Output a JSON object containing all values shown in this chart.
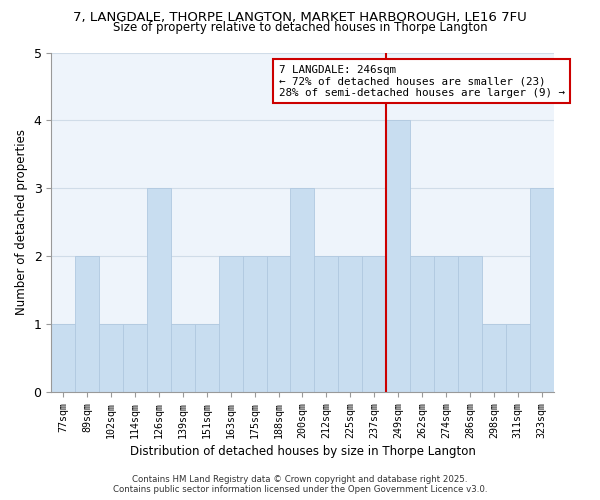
{
  "title_line1": "7, LANGDALE, THORPE LANGTON, MARKET HARBOROUGH, LE16 7FU",
  "title_line2": "Size of property relative to detached houses in Thorpe Langton",
  "xlabel": "Distribution of detached houses by size in Thorpe Langton",
  "ylabel": "Number of detached properties",
  "bar_labels": [
    "77sqm",
    "89sqm",
    "102sqm",
    "114sqm",
    "126sqm",
    "139sqm",
    "151sqm",
    "163sqm",
    "175sqm",
    "188sqm",
    "200sqm",
    "212sqm",
    "225sqm",
    "237sqm",
    "249sqm",
    "262sqm",
    "274sqm",
    "286sqm",
    "298sqm",
    "311sqm",
    "323sqm"
  ],
  "bar_values": [
    1,
    2,
    1,
    1,
    3,
    1,
    1,
    2,
    2,
    2,
    3,
    2,
    2,
    2,
    4,
    2,
    2,
    2,
    1,
    1,
    3
  ],
  "bar_color": "#c8ddf0",
  "bar_edge_color": "#b0c8e0",
  "ylim": [
    0,
    5
  ],
  "yticks": [
    0,
    1,
    2,
    3,
    4,
    5
  ],
  "vline_index": 14,
  "annotation_line1": "7 LANGDALE: 246sqm",
  "annotation_line2": "← 72% of detached houses are smaller (23)",
  "annotation_line3": "28% of semi-detached houses are larger (9) →",
  "vline_color": "#cc0000",
  "annotation_box_edge": "#cc0000",
  "footer_line1": "Contains HM Land Registry data © Crown copyright and database right 2025.",
  "footer_line2": "Contains public sector information licensed under the Open Government Licence v3.0.",
  "bg_color": "#ffffff",
  "plot_bg_color": "#eef4fb",
  "grid_color": "#d0dce8"
}
